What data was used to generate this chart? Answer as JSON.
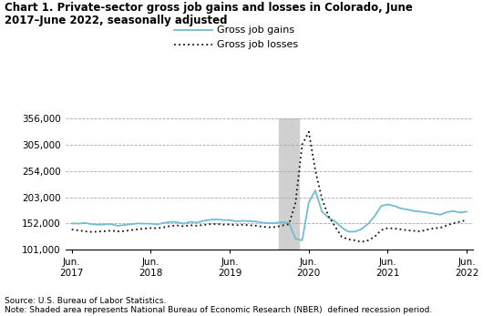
{
  "title_line1": "Chart 1. Private-sector gross job gains and losses in Colorado, June",
  "title_line2": "2017–June 2022, seasonally adjusted",
  "source_note": "Source: U.S. Bureau of Labor Statistics.\nNote: Shaded area represents National Bureau of Economic Research (NBER)  defined recession period.",
  "legend_gains": "Gross job gains",
  "legend_losses": "Gross job losses",
  "gains_color": "#72bcd4",
  "losses_color": "#111111",
  "recession_color": "#d0d0d0",
  "recession_alpha": 1.0,
  "ylim": [
    101000,
    356000
  ],
  "yticks": [
    101000,
    152000,
    203000,
    254000,
    305000,
    356000
  ],
  "ytick_labels": [
    "101,000",
    "152,000",
    "203,000",
    "254,000",
    "305,000",
    "356,000"
  ],
  "xtick_positions": [
    0,
    12,
    24,
    36,
    48,
    60
  ],
  "xtick_labels": [
    "Jun.\n2017",
    "Jun.\n2018",
    "Jun.\n2019",
    "Jun.\n2020",
    "Jun.\n2021",
    "Jun.\n2022"
  ],
  "recession_start_idx": 32,
  "recession_end_idx": 34,
  "gains": [
    152000,
    151500,
    153000,
    150500,
    149500,
    150000,
    150500,
    147500,
    149000,
    150500,
    152000,
    151500,
    151500,
    150000,
    153000,
    155000,
    154500,
    151500,
    155000,
    153500,
    157000,
    159000,
    160000,
    158500,
    158500,
    156000,
    157000,
    156500,
    155500,
    153500,
    152500,
    153000,
    154500,
    153000,
    122000,
    119000,
    193000,
    216000,
    175000,
    163000,
    156000,
    144000,
    136000,
    136000,
    141000,
    151000,
    166000,
    186000,
    189000,
    186000,
    181000,
    179000,
    176000,
    175000,
    173000,
    171000,
    169000,
    174000,
    176000,
    173000,
    175000
  ],
  "losses": [
    140000,
    138500,
    136500,
    135500,
    136000,
    137000,
    138000,
    136500,
    137000,
    139000,
    140500,
    142000,
    143000,
    142500,
    144500,
    147000,
    148000,
    146500,
    148500,
    147500,
    149000,
    150500,
    151000,
    149500,
    150000,
    148500,
    149500,
    148500,
    147500,
    145500,
    144500,
    145000,
    148000,
    150500,
    193000,
    305000,
    330000,
    255000,
    200000,
    166000,
    146000,
    126000,
    121000,
    119000,
    116000,
    119000,
    126000,
    139000,
    143000,
    142000,
    140500,
    138500,
    137500,
    136500,
    140000,
    142500,
    143500,
    148500,
    152500,
    155500,
    158500
  ]
}
